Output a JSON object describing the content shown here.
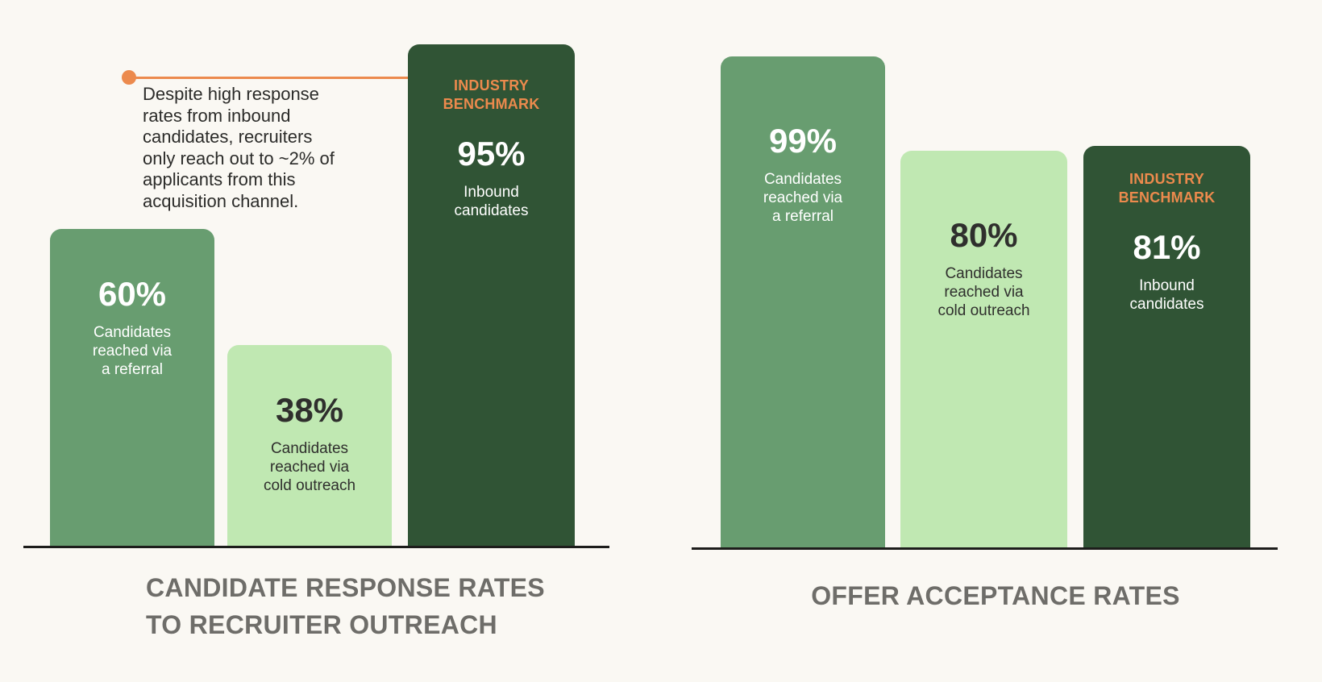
{
  "colors": {
    "background": "#faf8f3",
    "referral": "#689d70",
    "cold_outreach": "#c0e8b2",
    "inbound": "#305435",
    "accent": "#ec8a4d",
    "title": "#6e6d69",
    "baseline": "#1d1d1b"
  },
  "annotation": {
    "text": "Despite high response\nrates from inbound\ncandidates, recruiters\nonly reach out to ~2% of\napplicants from this\nacquisition channel."
  },
  "chart_data": [
    {
      "type": "bar",
      "title": "CANDIDATE RESPONSE RATES\nTO RECRUITER OUTREACH",
      "categories": [
        "Candidates\nreached via\na referral",
        "Candidates\nreached via\ncold outreach",
        "Inbound\ncandidates"
      ],
      "values": [
        60,
        38,
        95
      ],
      "value_labels": [
        "60%",
        "38%",
        "95%"
      ],
      "tags": [
        "",
        "",
        "INDUSTRY\nBENCHMARK"
      ],
      "colors": [
        "#689d70",
        "#c0e8b2",
        "#305435"
      ],
      "text_colors": [
        "#ffffff",
        "#2f2f2d",
        "#ffffff"
      ],
      "ylim": [
        0,
        100
      ],
      "grid": false,
      "legend": "none"
    },
    {
      "type": "bar",
      "title": "OFFER ACCEPTANCE RATES",
      "categories": [
        "Candidates\nreached via\na referral",
        "Candidates\nreached via\ncold outreach",
        "Inbound\ncandidates"
      ],
      "values": [
        99,
        80,
        81
      ],
      "value_labels": [
        "99%",
        "80%",
        "81%"
      ],
      "tags": [
        "",
        "",
        "INDUSTRY\nBENCHMARK"
      ],
      "colors": [
        "#689d70",
        "#c0e8b2",
        "#305435"
      ],
      "text_colors": [
        "#ffffff",
        "#2f2f2d",
        "#ffffff"
      ],
      "ylim": [
        0,
        100
      ],
      "grid": false,
      "legend": "none"
    }
  ]
}
